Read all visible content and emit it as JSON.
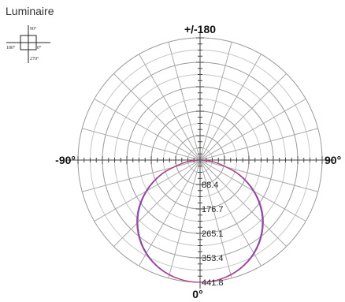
{
  "title": "Luminaire",
  "icon": {
    "labels": {
      "top": "90°",
      "left": "180°",
      "right": "0°",
      "bottom": "270°"
    }
  },
  "chart_data": {
    "type": "polar",
    "angle_labels": {
      "top": "+/-180",
      "left": "-90°",
      "right": "90°",
      "bottom": "0°"
    },
    "angle_step_deg": 15,
    "rmax": 441.8,
    "ring_values": [
      88.4,
      176.7,
      265.1,
      353.4,
      441.8
    ],
    "ring_labels": [
      "88.4",
      "176.7",
      "265.1",
      "353.4",
      "441.8"
    ],
    "series": [
      {
        "color": "#4a4ad8",
        "angles_deg": [
          0,
          10,
          20,
          30,
          40,
          50,
          60,
          70,
          80,
          85,
          90
        ],
        "values": [
          441.8,
          436,
          418,
          388,
          345,
          290,
          222,
          145,
          62,
          25,
          8
        ]
      },
      {
        "color": "#c8407a",
        "angles_deg": [
          0,
          10,
          20,
          30,
          40,
          50,
          60,
          70,
          80,
          85,
          90
        ],
        "values": [
          441.8,
          437,
          420,
          391,
          349,
          295,
          227,
          150,
          66,
          28,
          10
        ]
      }
    ]
  }
}
